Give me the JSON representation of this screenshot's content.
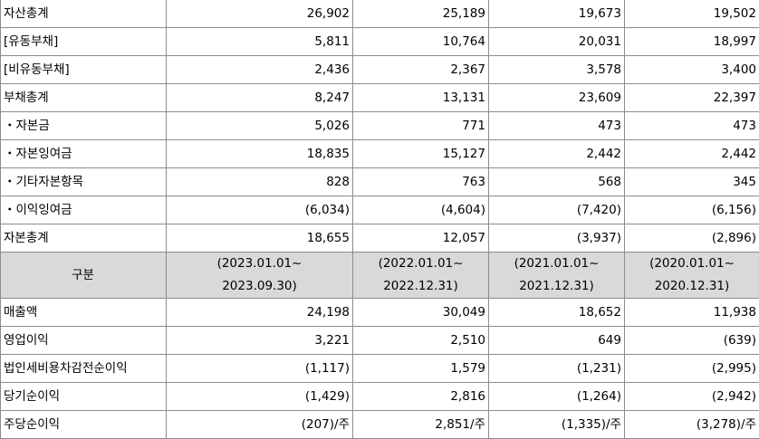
{
  "balance_rows": [
    {
      "label": "자산총계",
      "values": [
        "26,902",
        "25,189",
        "19,673",
        "19,502"
      ]
    },
    {
      "label": "[유동부채]",
      "values": [
        "5,811",
        "10,764",
        "20,031",
        "18,997"
      ]
    },
    {
      "label": "[비유동부채]",
      "values": [
        "2,436",
        "2,367",
        "3,578",
        "3,400"
      ]
    },
    {
      "label": "부채총계",
      "values": [
        "8,247",
        "13,131",
        "23,609",
        "22,397"
      ]
    },
    {
      "label": "・자본금",
      "values": [
        "5,026",
        "771",
        "473",
        "473"
      ]
    },
    {
      "label": "・자본잉여금",
      "values": [
        "18,835",
        "15,127",
        "2,442",
        "2,442"
      ]
    },
    {
      "label": "・기타자본항목",
      "values": [
        "828",
        "763",
        "568",
        "345"
      ]
    },
    {
      "label": "・이익잉여금",
      "values": [
        "(6,034)",
        "(4,604)",
        "(7,420)",
        "(6,156)"
      ]
    },
    {
      "label": "자본총계",
      "values": [
        "18,655",
        "12,057",
        "(3,937)",
        "(2,896)"
      ]
    }
  ],
  "header": {
    "label": "구분",
    "periods": [
      {
        "start": "(2023.01.01~",
        "end": "2023.09.30)"
      },
      {
        "start": "(2022.01.01~",
        "end": "2022.12.31)"
      },
      {
        "start": "(2021.01.01~",
        "end": "2021.12.31)"
      },
      {
        "start": "(2020.01.01~",
        "end": "2020.12.31)"
      }
    ]
  },
  "income_rows": [
    {
      "label": "매출액",
      "values": [
        "24,198",
        "30,049",
        "18,652",
        "11,938"
      ]
    },
    {
      "label": "영업이익",
      "values": [
        "3,221",
        "2,510",
        "649",
        "(639)"
      ]
    },
    {
      "label": "법인세비용차감전순이익",
      "values": [
        "(1,117)",
        "1,579",
        "(1,231)",
        "(2,995)"
      ]
    },
    {
      "label": "당기순이익",
      "values": [
        "(1,429)",
        "2,816",
        "(1,264)",
        "(2,942)"
      ]
    },
    {
      "label": "주당순이익",
      "values": [
        "(207)/주",
        "2,851/주",
        "(1,335)/주",
        "(3,278)/주"
      ]
    }
  ]
}
